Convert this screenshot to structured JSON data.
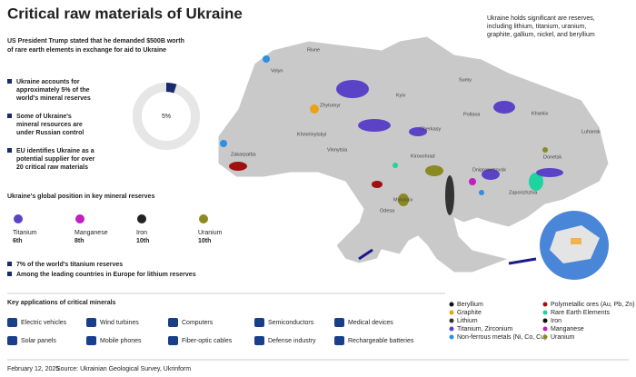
{
  "header": {
    "title": "Critical raw materials of Ukraine",
    "subtitle": [
      "US President Trump stated that he demanded $500B worth",
      "of rare earth elements in exchange for aid to Ukraine"
    ],
    "note": [
      "Ukraine holds significant are reserves,",
      "including lithium, titanium, uranium,",
      "graphite, gallium, nickel, and beryllium"
    ]
  },
  "bullets": [
    [
      "Ukraine accounts for",
      "approximately 5% of the",
      "world's mineral reserves"
    ],
    [
      "Some of Ukraine's",
      "mineral resources are",
      "under Russian control"
    ],
    [
      "EU identifies Ukraine as a",
      "potential supplier for over",
      "20 critical raw materials"
    ]
  ],
  "donut": {
    "value": 5,
    "label": "5%"
  },
  "ranking": {
    "title": "Ukraine's global position in key mineral reserves",
    "items": [
      {
        "name": "Titanium",
        "rank": "6th"
      },
      {
        "name": "Manganese",
        "rank": "8th"
      },
      {
        "name": "Iron",
        "rank": "10th"
      },
      {
        "name": "Uranium",
        "rank": "10th"
      }
    ],
    "notes": [
      "7% of the world's titanium reserves",
      "Among the leading countries in Europe for lithium reserves"
    ]
  },
  "applications": {
    "title": "Key applications of critical minerals",
    "items": [
      "Electric vehicles",
      "Wind turbines",
      "Computers",
      "Semiconductors",
      "Medical devices",
      "Solar panels",
      "Mobile phones",
      "Fiber-optic cables",
      "Defense industry",
      "Rechargeable batteries"
    ]
  },
  "legend": [
    {
      "name": "Beryllium",
      "color": "#111111"
    },
    {
      "name": "Graphite",
      "color": "#e8a317"
    },
    {
      "name": "Lithium",
      "color": "#333333"
    },
    {
      "name": "Titanium, Zirconium",
      "color": "#5b43c7"
    },
    {
      "name": "Non-ferrous metals (Ni, Co, Cu)",
      "color": "#2f8fe0"
    },
    {
      "name": "Polymetallic ores (Au, Pb, Zn)",
      "color": "#a01010"
    },
    {
      "name": "Rare Earth Elements",
      "color": "#1dd3a0"
    },
    {
      "name": "Iron",
      "color": "#111111"
    },
    {
      "name": "Manganese",
      "color": "#c020c0"
    },
    {
      "name": "Uranium",
      "color": "#8a8a20"
    }
  ],
  "cities": [
    "Volyn",
    "Rivne",
    "Zhytomyr",
    "Kyiv",
    "Sumy",
    "Kharkiv",
    "Luhansk",
    "Donetsk",
    "Poltava",
    "Cherkasy",
    "Khmelnytskyi",
    "Vinnytsia",
    "Kirovohrad",
    "Dnipropetrovsk",
    "Zaporizhzhia",
    "Mykolaiv",
    "Odesa",
    "Zakarpattia"
  ],
  "footer": {
    "date": "February 12, 2025",
    "source": "Source: Ukrainian Geological Survey, Ukrinform"
  }
}
